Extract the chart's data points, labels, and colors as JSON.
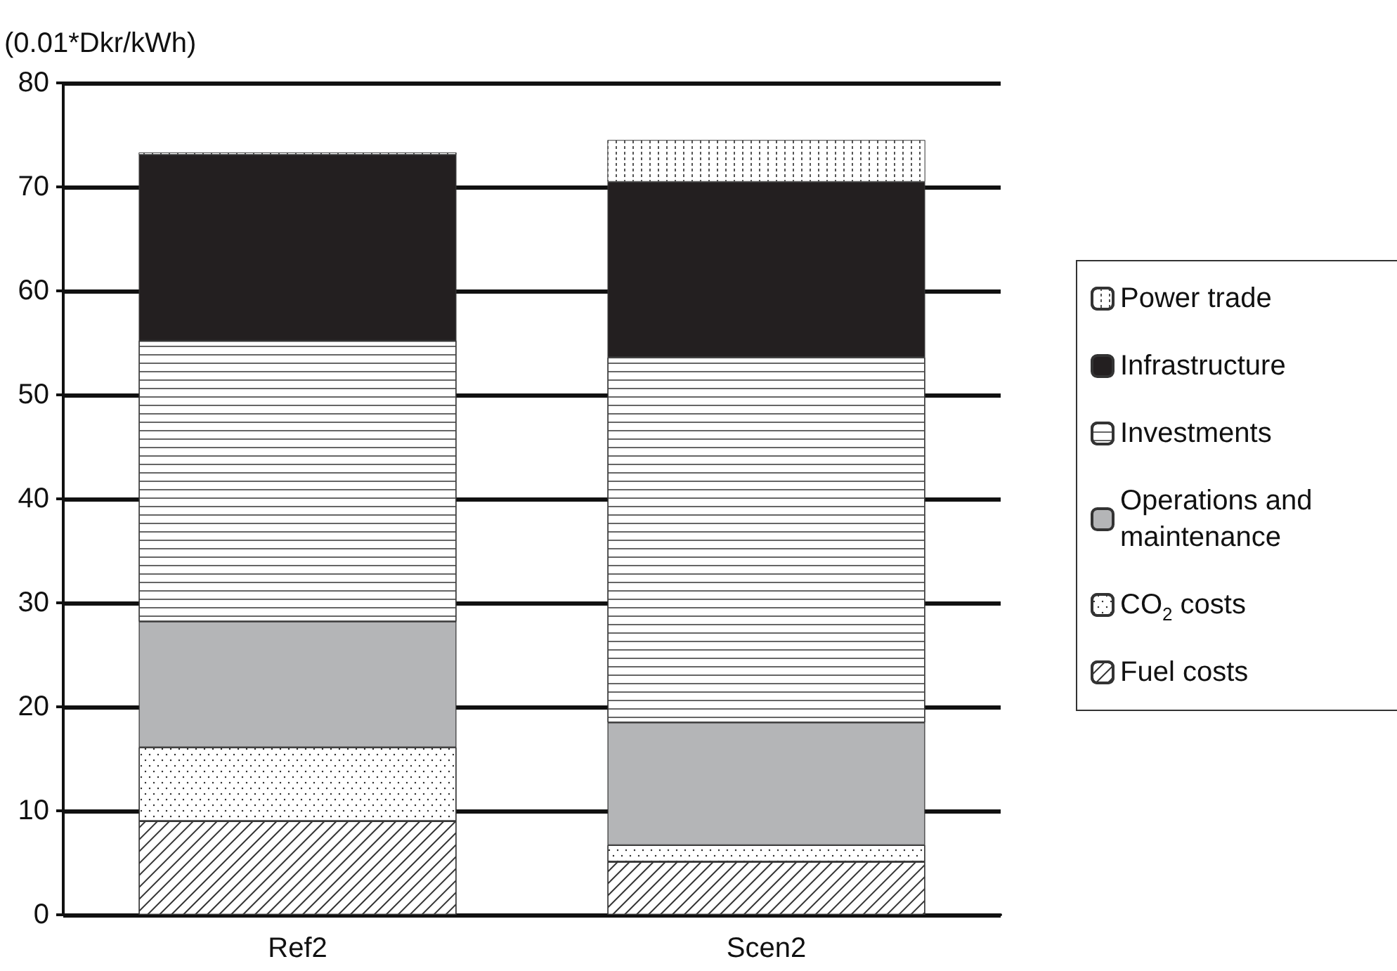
{
  "chart_data": {
    "type": "bar",
    "stacked": true,
    "ylabel": "(0.01*Dkr/kWh)",
    "categories": [
      "Ref2",
      "Scen2"
    ],
    "series": [
      {
        "name": "Fuel costs",
        "color": "#ffffff",
        "values": [
          9.0,
          5.1
        ]
      },
      {
        "name": "CO$_{2}$ costs",
        "color": "#ffffff",
        "values": [
          7.1,
          1.6
        ]
      },
      {
        "name": "Operations and maintenance",
        "color": "#b4b5b7",
        "values": [
          12.1,
          11.8
        ]
      },
      {
        "name": "Investments",
        "color": "#ffffff",
        "values": [
          27.0,
          35.1
        ]
      },
      {
        "name": "Infrastructure",
        "color": "#231f20",
        "values": [
          17.9,
          16.9
        ]
      },
      {
        "name": "Power trade",
        "color": "#ffffff",
        "values": [
          0.2,
          4.0
        ]
      }
    ],
    "ylim": [
      0,
      80
    ],
    "yticks": [
      0,
      10,
      20,
      30,
      40,
      50,
      60,
      70,
      80
    ],
    "grid": "y",
    "legend": "right"
  }
}
